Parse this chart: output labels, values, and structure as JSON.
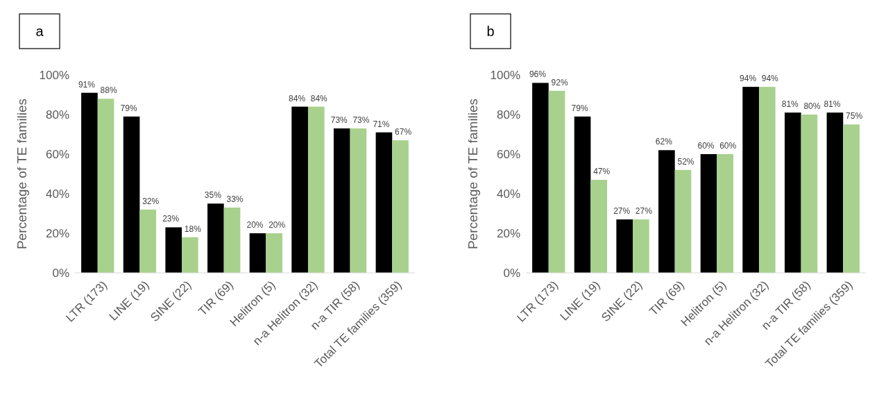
{
  "chart_data": [
    {
      "type": "bar",
      "title": "a",
      "ylabel": "Percentage of TE families",
      "categories": [
        "LTR (173)",
        "LINE (19)",
        "SINE (22)",
        "TIR (69)",
        "Helitron (5)",
        "n-a Helitron (32)",
        "n-a TIR (58)",
        "Total TE families (359)"
      ],
      "series": [
        {
          "color": "#000000",
          "values": [
            91,
            79,
            23,
            35,
            20,
            84,
            73,
            71
          ],
          "value_labels": [
            "91%",
            "79%",
            "23%",
            "35%",
            "20%",
            "84%",
            "73%",
            "71%"
          ]
        },
        {
          "color": "#a9d18e",
          "values": [
            88,
            32,
            18,
            33,
            20,
            84,
            73,
            67
          ],
          "value_labels": [
            "88%",
            "32%",
            "18%",
            "33%",
            "20%",
            "84%",
            "73%",
            "67%"
          ]
        }
      ],
      "ylim": [
        0,
        100
      ],
      "yticks": [
        {
          "value": 0,
          "label": "0%"
        },
        {
          "value": 20,
          "label": "20%"
        },
        {
          "value": 40,
          "label": "40%"
        },
        {
          "value": 60,
          "label": "60%"
        },
        {
          "value": 80,
          "label": "80%"
        },
        {
          "value": 100,
          "label": "100%"
        }
      ]
    },
    {
      "type": "bar",
      "title": "b",
      "ylabel": "Percentage of TE families",
      "categories": [
        "LTR (173)",
        "LINE (19)",
        "SINE (22)",
        "TIR (69)",
        "Helitron (5)",
        "n-a Helitron (32)",
        "n-a TIR (58)",
        "Total TE families (359)"
      ],
      "series": [
        {
          "color": "#000000",
          "values": [
            96,
            79,
            27,
            62,
            60,
            94,
            81,
            81
          ],
          "value_labels": [
            "96%",
            "79%",
            "27%",
            "62%",
            "60%",
            "94%",
            "81%",
            "81%"
          ]
        },
        {
          "color": "#a9d18e",
          "values": [
            92,
            47,
            27,
            52,
            60,
            94,
            80,
            75
          ],
          "value_labels": [
            "92%",
            "47%",
            "27%",
            "52%",
            "60%",
            "94%",
            "80%",
            "75%"
          ]
        }
      ],
      "ylim": [
        0,
        100
      ],
      "yticks": [
        {
          "value": 0,
          "label": "0%"
        },
        {
          "value": 20,
          "label": "20%"
        },
        {
          "value": 40,
          "label": "40%"
        },
        {
          "value": 60,
          "label": "60%"
        },
        {
          "value": 80,
          "label": "80%"
        },
        {
          "value": 100,
          "label": "100%"
        }
      ]
    }
  ]
}
